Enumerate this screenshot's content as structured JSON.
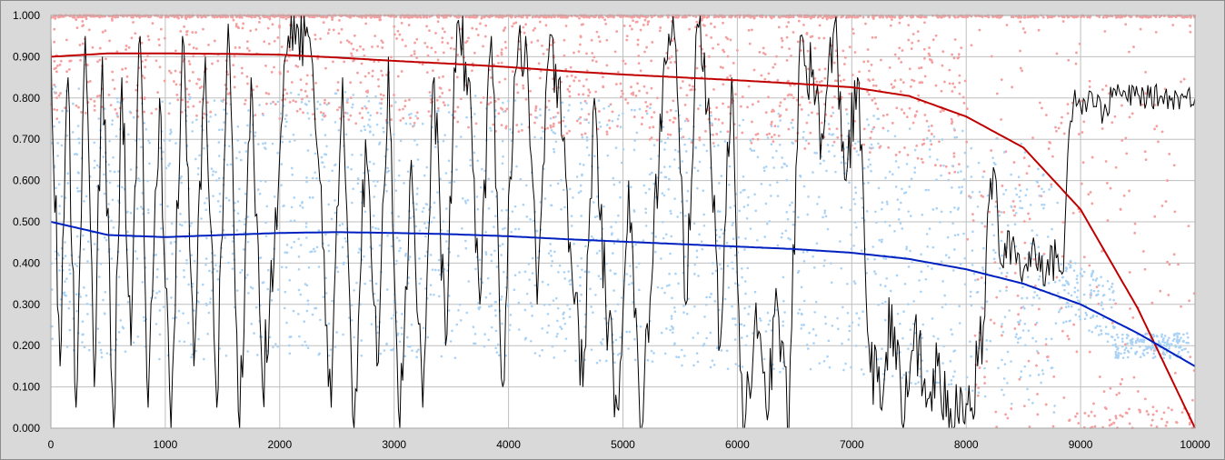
{
  "chart_data": {
    "type": "scatter",
    "title": "",
    "xlabel": "",
    "ylabel": "",
    "xlim": [
      0,
      10000
    ],
    "ylim": [
      0,
      1
    ],
    "grid": true,
    "legend": "none",
    "x_ticks": [
      "0",
      "1000",
      "2000",
      "3000",
      "4000",
      "5000",
      "6000",
      "7000",
      "8000",
      "9000",
      "10000"
    ],
    "y_ticks": [
      "0.000",
      "0.100",
      "0.200",
      "0.300",
      "0.400",
      "0.500",
      "0.600",
      "0.700",
      "0.800",
      "0.900",
      "1.000"
    ],
    "colors": {
      "plot_background": "#ffffff",
      "chart_background": "#d9d9d9",
      "gridline": "#bfbfbf",
      "pink_scatter": "#f4a0a0",
      "light_blue_scatter": "#a9d2f5",
      "black_series": "#000000",
      "red_curve": "#c00000",
      "blue_curve": "#0020c0"
    },
    "series": [
      {
        "style": "smooth-line",
        "color": "#c00000",
        "x": [
          0,
          500,
          1000,
          1500,
          2000,
          2500,
          3000,
          3500,
          4000,
          4500,
          5000,
          5500,
          6000,
          6500,
          7000,
          7500,
          8000,
          8500,
          9000,
          9500,
          10000
        ],
        "y": [
          0.9,
          0.908,
          0.908,
          0.907,
          0.905,
          0.898,
          0.89,
          0.883,
          0.875,
          0.865,
          0.857,
          0.85,
          0.843,
          0.835,
          0.826,
          0.805,
          0.755,
          0.68,
          0.53,
          0.29,
          0.0
        ]
      },
      {
        "style": "smooth-line",
        "color": "#0020c0",
        "x": [
          0,
          500,
          1000,
          1500,
          2000,
          2500,
          3000,
          3500,
          4000,
          4500,
          5000,
          5500,
          6000,
          6500,
          7000,
          7500,
          8000,
          8500,
          9000,
          9500,
          10000
        ],
        "y": [
          0.5,
          0.468,
          0.463,
          0.468,
          0.473,
          0.475,
          0.473,
          0.47,
          0.465,
          0.458,
          0.452,
          0.446,
          0.44,
          0.434,
          0.425,
          0.41,
          0.385,
          0.35,
          0.3,
          0.23,
          0.15
        ]
      },
      {
        "style": "noisy-line",
        "color": "#000000",
        "x": [
          0,
          80,
          150,
          220,
          300,
          380,
          450,
          550,
          620,
          700,
          780,
          850,
          950,
          1050,
          1150,
          1250,
          1350,
          1450,
          1550,
          1650,
          1750,
          1850,
          1950,
          2050,
          2150,
          2250,
          2350,
          2450,
          2550,
          2650,
          2750,
          2850,
          2950,
          3050,
          3150,
          3250,
          3350,
          3450,
          3550,
          3650,
          3750,
          3850,
          3950,
          4050,
          4150,
          4250,
          4350,
          4450,
          4550,
          4650,
          4750,
          4850,
          4950,
          5050,
          5150,
          5250,
          5350,
          5450,
          5550,
          5650,
          5750,
          5850,
          5950,
          6050,
          6150,
          6250,
          6350,
          6450,
          6550,
          6650,
          6750,
          6850,
          6950,
          7050,
          7150,
          7250,
          7350,
          7450,
          7550,
          7650,
          7750,
          7850,
          7950,
          8050,
          8100,
          8150,
          8200,
          8250,
          8300,
          8400,
          8500,
          8600,
          8700,
          8800,
          8850,
          8900,
          8950,
          9000,
          9100,
          9200,
          9300,
          9400,
          9500,
          9600,
          9700,
          9800,
          9900,
          10000
        ],
        "y": [
          0.95,
          0.15,
          0.85,
          0.05,
          0.95,
          0.1,
          0.9,
          0.0,
          0.85,
          0.2,
          0.95,
          0.05,
          0.8,
          0.0,
          0.95,
          0.15,
          0.9,
          0.05,
          0.98,
          0.0,
          0.85,
          0.1,
          0.4,
          0.9,
          0.98,
          0.95,
          0.6,
          0.05,
          0.85,
          0.0,
          0.7,
          0.15,
          0.9,
          0.0,
          0.65,
          0.05,
          0.85,
          0.2,
          0.98,
          0.85,
          0.3,
          0.95,
          0.1,
          0.85,
          0.95,
          0.3,
          0.9,
          0.85,
          0.4,
          0.1,
          0.8,
          0.3,
          0.05,
          0.6,
          0.0,
          0.35,
          0.85,
          0.95,
          0.3,
          0.98,
          0.8,
          0.2,
          0.85,
          0.0,
          0.25,
          0.05,
          0.3,
          0.0,
          0.95,
          0.85,
          0.7,
          0.98,
          0.6,
          0.85,
          0.2,
          0.05,
          0.3,
          0.0,
          0.25,
          0.05,
          0.15,
          0.0,
          0.1,
          0.05,
          0.15,
          0.25,
          0.55,
          0.62,
          0.4,
          0.45,
          0.38,
          0.44,
          0.38,
          0.42,
          0.38,
          0.72,
          0.82,
          0.78,
          0.81,
          0.76,
          0.82,
          0.8,
          0.81,
          0.8,
          0.805,
          0.8,
          0.802,
          0.8
        ]
      }
    ]
  }
}
